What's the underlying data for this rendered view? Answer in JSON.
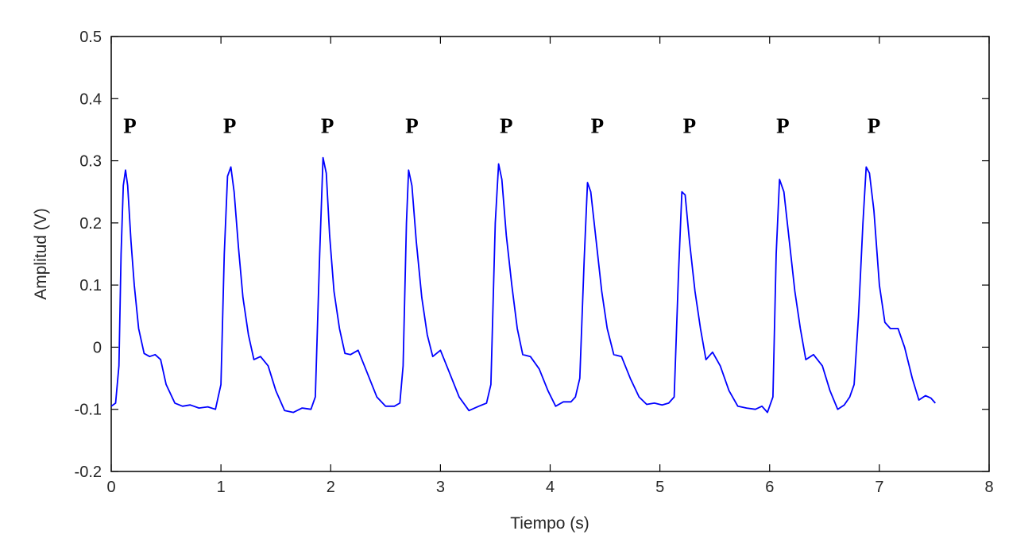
{
  "chart_data": {
    "type": "line",
    "title": "",
    "xlabel": "Tiempo (s)",
    "ylabel": "Amplitud (V)",
    "xlim": [
      0,
      8
    ],
    "ylim": [
      -0.2,
      0.5
    ],
    "xticks": [
      0,
      1,
      2,
      3,
      4,
      5,
      6,
      7,
      8
    ],
    "xtick_labels": [
      "0",
      "1",
      "2",
      "3",
      "4",
      "5",
      "6",
      "7",
      "8"
    ],
    "yticks": [
      -0.2,
      -0.1,
      0,
      0.1,
      0.2,
      0.3,
      0.4,
      0.5
    ],
    "ytick_labels": [
      "-0.2",
      "-0.1",
      "0",
      "0.1",
      "0.2",
      "0.3",
      "0.4",
      "0.5"
    ],
    "grid": false,
    "legend": "none",
    "line_color": "#0000ff",
    "series": [
      {
        "x": [
          0.0,
          0.04,
          0.07,
          0.09,
          0.11,
          0.13,
          0.15,
          0.18,
          0.21,
          0.25,
          0.3,
          0.35,
          0.4,
          0.45,
          0.5,
          0.58,
          0.65,
          0.72,
          0.8,
          0.88,
          0.95,
          1.0,
          1.03,
          1.06,
          1.09,
          1.12,
          1.16,
          1.2,
          1.25,
          1.3,
          1.36,
          1.43,
          1.5,
          1.58,
          1.66,
          1.74,
          1.82,
          1.86,
          1.9,
          1.93,
          1.96,
          1.99,
          2.03,
          2.08,
          2.13,
          2.18,
          2.25,
          2.33,
          2.42,
          2.5,
          2.58,
          2.63,
          2.66,
          2.69,
          2.71,
          2.74,
          2.78,
          2.83,
          2.88,
          2.93,
          3.0,
          3.08,
          3.17,
          3.26,
          3.35,
          3.42,
          3.46,
          3.5,
          3.53,
          3.56,
          3.6,
          3.65,
          3.7,
          3.75,
          3.82,
          3.9,
          3.98,
          4.05,
          4.12,
          4.19,
          4.23,
          4.27,
          4.31,
          4.34,
          4.37,
          4.42,
          4.47,
          4.52,
          4.58,
          4.65,
          4.73,
          4.81,
          4.88,
          4.95,
          5.02,
          5.08,
          5.13,
          5.17,
          5.2,
          5.23,
          5.27,
          5.32,
          5.37,
          5.42,
          5.48,
          5.55,
          5.63,
          5.71,
          5.79,
          5.87,
          5.93,
          5.98,
          6.03,
          6.06,
          6.09,
          6.13,
          6.18,
          6.23,
          6.28,
          6.33,
          6.4,
          6.48,
          6.55,
          6.62,
          6.68,
          6.73,
          6.77,
          6.81,
          6.85,
          6.88,
          6.91,
          6.95,
          7.0,
          7.05,
          7.1,
          7.17,
          7.23,
          7.3,
          7.36,
          7.42,
          7.47,
          7.51
        ],
        "y": [
          -0.095,
          -0.09,
          -0.03,
          0.15,
          0.26,
          0.285,
          0.26,
          0.17,
          0.1,
          0.03,
          -0.01,
          -0.015,
          -0.012,
          -0.02,
          -0.06,
          -0.09,
          -0.095,
          -0.093,
          -0.098,
          -0.096,
          -0.1,
          -0.06,
          0.15,
          0.275,
          0.29,
          0.25,
          0.16,
          0.08,
          0.02,
          -0.02,
          -0.015,
          -0.03,
          -0.07,
          -0.102,
          -0.105,
          -0.098,
          -0.1,
          -0.08,
          0.15,
          0.305,
          0.28,
          0.18,
          0.09,
          0.03,
          -0.01,
          -0.012,
          -0.005,
          -0.04,
          -0.08,
          -0.095,
          -0.095,
          -0.09,
          -0.03,
          0.2,
          0.285,
          0.26,
          0.17,
          0.08,
          0.02,
          -0.015,
          -0.005,
          -0.04,
          -0.08,
          -0.102,
          -0.095,
          -0.09,
          -0.06,
          0.2,
          0.295,
          0.27,
          0.18,
          0.1,
          0.03,
          -0.012,
          -0.015,
          -0.035,
          -0.07,
          -0.095,
          -0.088,
          -0.088,
          -0.08,
          -0.05,
          0.14,
          0.265,
          0.25,
          0.17,
          0.09,
          0.03,
          -0.012,
          -0.015,
          -0.05,
          -0.08,
          -0.092,
          -0.09,
          -0.093,
          -0.09,
          -0.08,
          0.12,
          0.25,
          0.245,
          0.17,
          0.09,
          0.03,
          -0.02,
          -0.008,
          -0.03,
          -0.07,
          -0.095,
          -0.098,
          -0.1,
          -0.095,
          -0.105,
          -0.08,
          0.15,
          0.27,
          0.25,
          0.17,
          0.09,
          0.03,
          -0.02,
          -0.012,
          -0.03,
          -0.07,
          -0.1,
          -0.093,
          -0.08,
          -0.06,
          0.05,
          0.2,
          0.29,
          0.28,
          0.22,
          0.1,
          0.04,
          0.03,
          0.03,
          0.0,
          -0.05,
          -0.085,
          -0.078,
          -0.082,
          -0.09
        ]
      }
    ],
    "annotations": [
      {
        "text": "P",
        "x": 0.17,
        "y": 0.345
      },
      {
        "text": "P",
        "x": 1.08,
        "y": 0.345
      },
      {
        "text": "P",
        "x": 1.97,
        "y": 0.345
      },
      {
        "text": "P",
        "x": 2.74,
        "y": 0.345
      },
      {
        "text": "P",
        "x": 3.6,
        "y": 0.345
      },
      {
        "text": "P",
        "x": 4.43,
        "y": 0.345
      },
      {
        "text": "P",
        "x": 5.27,
        "y": 0.345
      },
      {
        "text": "P",
        "x": 6.12,
        "y": 0.345
      },
      {
        "text": "P",
        "x": 6.95,
        "y": 0.345
      }
    ]
  }
}
